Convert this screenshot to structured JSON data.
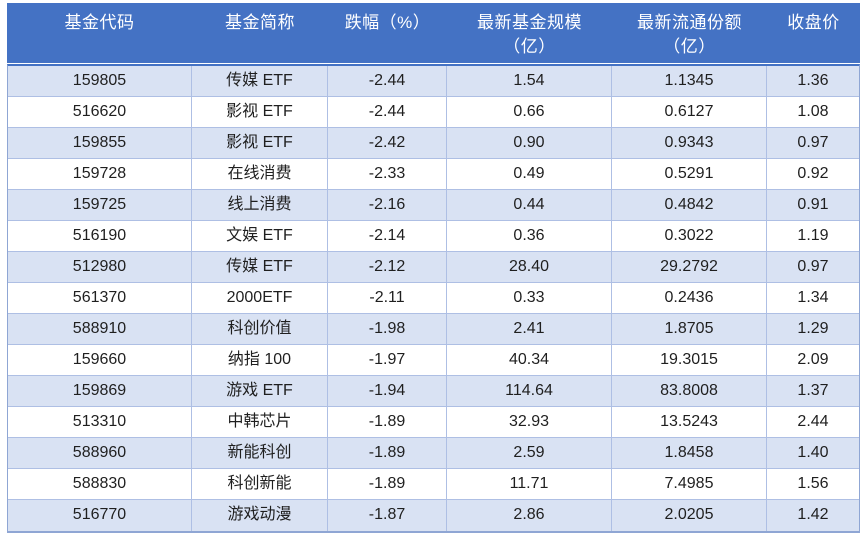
{
  "colors": {
    "header_bg": "#4472C4",
    "header_text": "#FFFFFF",
    "band_row_bg": "#D9E2F3",
    "white_row_bg": "#FFFFFF",
    "grid_border": "#AEBFE4",
    "outer_border": "#8FA6D4",
    "body_text": "#1F1F1F"
  },
  "header": {
    "columns": [
      {
        "line1": "基金代码",
        "line2": ""
      },
      {
        "line1": "基金简称",
        "line2": ""
      },
      {
        "line1": "跌幅（%）",
        "line2": ""
      },
      {
        "line1": "最新基金规模",
        "line2": "（亿）"
      },
      {
        "line1": "最新流通份额",
        "line2": "（亿）"
      },
      {
        "line1": "收盘价",
        "line2": ""
      }
    ]
  },
  "rows": [
    {
      "code": "159805",
      "name": "传媒 ETF",
      "change": "-2.44",
      "size": "1.54",
      "shares": "1.1345",
      "close": "1.36"
    },
    {
      "code": "516620",
      "name": "影视 ETF",
      "change": "-2.44",
      "size": "0.66",
      "shares": "0.6127",
      "close": "1.08"
    },
    {
      "code": "159855",
      "name": "影视 ETF",
      "change": "-2.42",
      "size": "0.90",
      "shares": "0.9343",
      "close": "0.97"
    },
    {
      "code": "159728",
      "name": "在线消费",
      "change": "-2.33",
      "size": "0.49",
      "shares": "0.5291",
      "close": "0.92"
    },
    {
      "code": "159725",
      "name": "线上消费",
      "change": "-2.16",
      "size": "0.44",
      "shares": "0.4842",
      "close": "0.91"
    },
    {
      "code": "516190",
      "name": "文娱 ETF",
      "change": "-2.14",
      "size": "0.36",
      "shares": "0.3022",
      "close": "1.19"
    },
    {
      "code": "512980",
      "name": "传媒 ETF",
      "change": "-2.12",
      "size": "28.40",
      "shares": "29.2792",
      "close": "0.97"
    },
    {
      "code": "561370",
      "name": "2000ETF",
      "change": "-2.11",
      "size": "0.33",
      "shares": "0.2436",
      "close": "1.34"
    },
    {
      "code": "588910",
      "name": "科创价值",
      "change": "-1.98",
      "size": "2.41",
      "shares": "1.8705",
      "close": "1.29"
    },
    {
      "code": "159660",
      "name": "纳指 100",
      "change": "-1.97",
      "size": "40.34",
      "shares": "19.3015",
      "close": "2.09"
    },
    {
      "code": "159869",
      "name": "游戏 ETF",
      "change": "-1.94",
      "size": "114.64",
      "shares": "83.8008",
      "close": "1.37"
    },
    {
      "code": "513310",
      "name": "中韩芯片",
      "change": "-1.89",
      "size": "32.93",
      "shares": "13.5243",
      "close": "2.44"
    },
    {
      "code": "588960",
      "name": "新能科创",
      "change": "-1.89",
      "size": "2.59",
      "shares": "1.8458",
      "close": "1.40"
    },
    {
      "code": "588830",
      "name": "科创新能",
      "change": "-1.89",
      "size": "11.71",
      "shares": "7.4985",
      "close": "1.56"
    },
    {
      "code": "516770",
      "name": "游戏动漫",
      "change": "-1.87",
      "size": "2.86",
      "shares": "2.0205",
      "close": "1.42"
    }
  ],
  "chart_data": {
    "type": "table",
    "title": "",
    "columns": [
      "基金代码",
      "基金简称",
      "跌幅（%）",
      "最新基金规模（亿）",
      "最新流通份额（亿）",
      "收盘价"
    ],
    "rows": [
      [
        "159805",
        "传媒 ETF",
        -2.44,
        1.54,
        1.1345,
        1.36
      ],
      [
        "516620",
        "影视 ETF",
        -2.44,
        0.66,
        0.6127,
        1.08
      ],
      [
        "159855",
        "影视 ETF",
        -2.42,
        0.9,
        0.9343,
        0.97
      ],
      [
        "159728",
        "在线消费",
        -2.33,
        0.49,
        0.5291,
        0.92
      ],
      [
        "159725",
        "线上消费",
        -2.16,
        0.44,
        0.4842,
        0.91
      ],
      [
        "516190",
        "文娱 ETF",
        -2.14,
        0.36,
        0.3022,
        1.19
      ],
      [
        "512980",
        "传媒 ETF",
        -2.12,
        28.4,
        29.2792,
        0.97
      ],
      [
        "561370",
        "2000ETF",
        -2.11,
        0.33,
        0.2436,
        1.34
      ],
      [
        "588910",
        "科创价值",
        -1.98,
        2.41,
        1.8705,
        1.29
      ],
      [
        "159660",
        "纳指 100",
        -1.97,
        40.34,
        19.3015,
        2.09
      ],
      [
        "159869",
        "游戏 ETF",
        -1.94,
        114.64,
        83.8008,
        1.37
      ],
      [
        "513310",
        "中韩芯片",
        -1.89,
        32.93,
        13.5243,
        2.44
      ],
      [
        "588960",
        "新能科创",
        -1.89,
        2.59,
        1.8458,
        1.4
      ],
      [
        "588830",
        "科创新能",
        -1.89,
        11.71,
        7.4985,
        1.56
      ],
      [
        "516770",
        "游戏动漫",
        -1.87,
        2.86,
        2.0205,
        1.42
      ]
    ]
  }
}
